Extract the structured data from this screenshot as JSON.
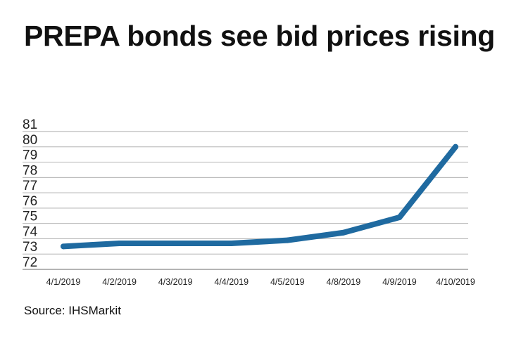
{
  "chart_data": {
    "type": "line",
    "title": "PREPA bonds see bid prices rising",
    "xlabel": "",
    "ylabel": "",
    "categories": [
      "4/1/2019",
      "4/2/2019",
      "4/3/2019",
      "4/4/2019",
      "4/5/2019",
      "4/8/2019",
      "4/9/2019",
      "4/10/2019"
    ],
    "series": [
      {
        "name": "Bid price",
        "values": [
          73.5,
          73.7,
          73.7,
          73.7,
          73.9,
          74.4,
          75.4,
          80.0
        ],
        "color": "#1f6aa0"
      }
    ],
    "ylim": [
      72,
      81
    ],
    "yticks": [
      72,
      73,
      74,
      75,
      76,
      77,
      78,
      79,
      80,
      81
    ],
    "grid": true,
    "legend": "none",
    "source": "Source: IHSMarkit"
  }
}
